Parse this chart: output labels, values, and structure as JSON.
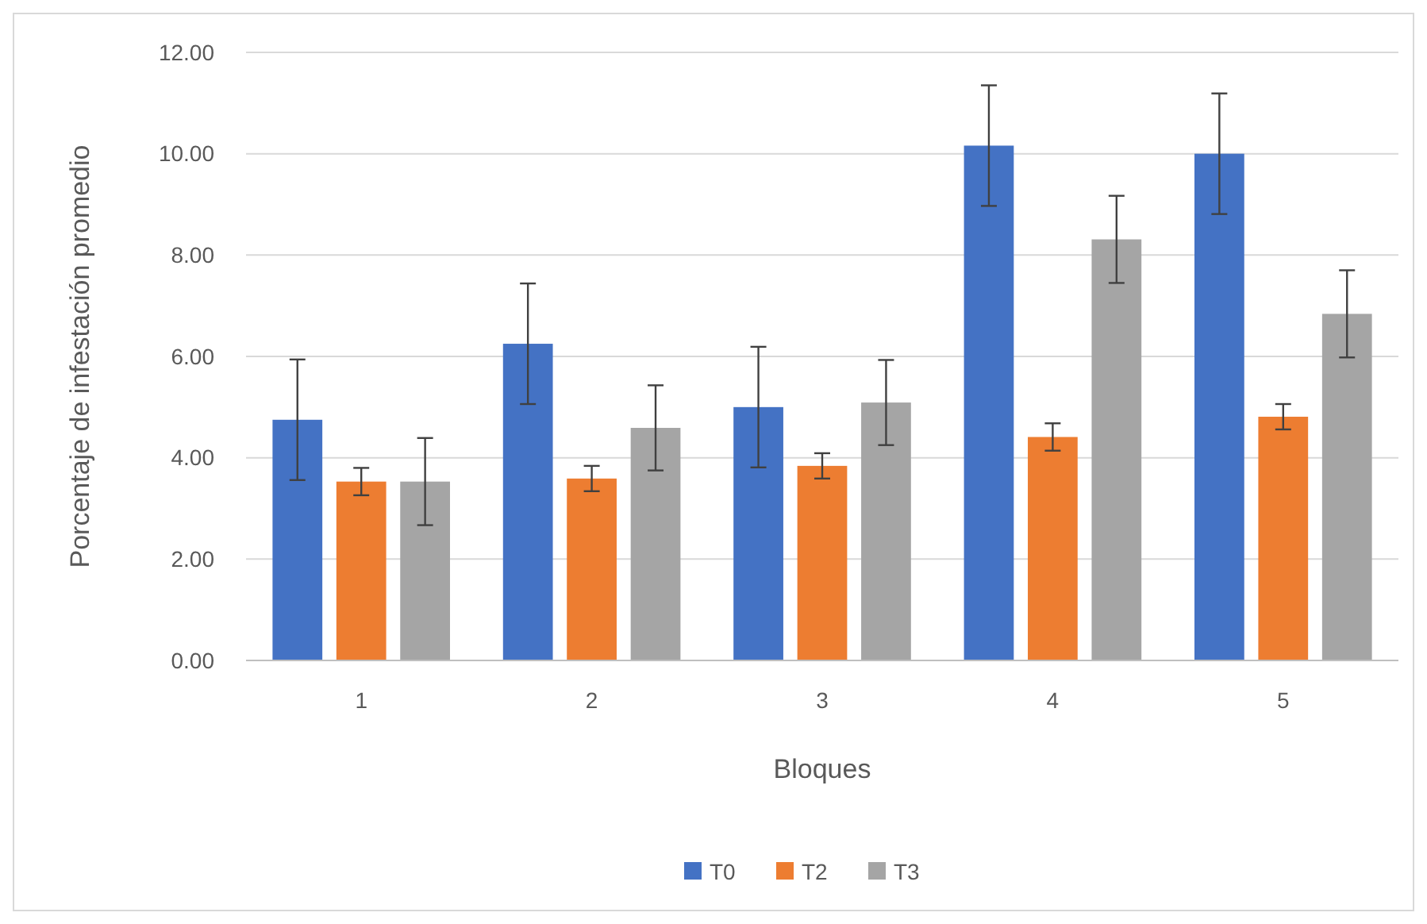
{
  "chart_data": {
    "type": "bar",
    "xlabel": "Bloques",
    "ylabel": "Porcentaje de infestación promedio",
    "categories": [
      "1",
      "2",
      "3",
      "4",
      "5"
    ],
    "series": [
      {
        "name": "T0",
        "color": "#4472c4",
        "values": [
          4.75,
          6.25,
          5.0,
          10.16,
          10.0
        ],
        "errors": [
          1.19,
          1.19,
          1.19,
          1.19,
          1.19
        ]
      },
      {
        "name": "T2",
        "color": "#ed7d31",
        "values": [
          3.53,
          3.59,
          3.84,
          4.41,
          4.81
        ],
        "errors": [
          0.27,
          0.25,
          0.25,
          0.27,
          0.25
        ]
      },
      {
        "name": "T3",
        "color": "#a5a5a5",
        "values": [
          3.53,
          4.59,
          5.09,
          8.31,
          6.84
        ],
        "errors": [
          0.86,
          0.84,
          0.84,
          0.86,
          0.86
        ]
      }
    ],
    "ylim": [
      0,
      12
    ],
    "yticks": [
      {
        "value": 0,
        "label": "0.00"
      },
      {
        "value": 2,
        "label": "2.00"
      },
      {
        "value": 4,
        "label": "4.00"
      },
      {
        "value": 6,
        "label": "6.00"
      },
      {
        "value": 8,
        "label": "8.00"
      },
      {
        "value": 10,
        "label": "10.00"
      },
      {
        "value": 12,
        "label": "12.00"
      }
    ],
    "grid": "y",
    "legend": "bottom"
  }
}
